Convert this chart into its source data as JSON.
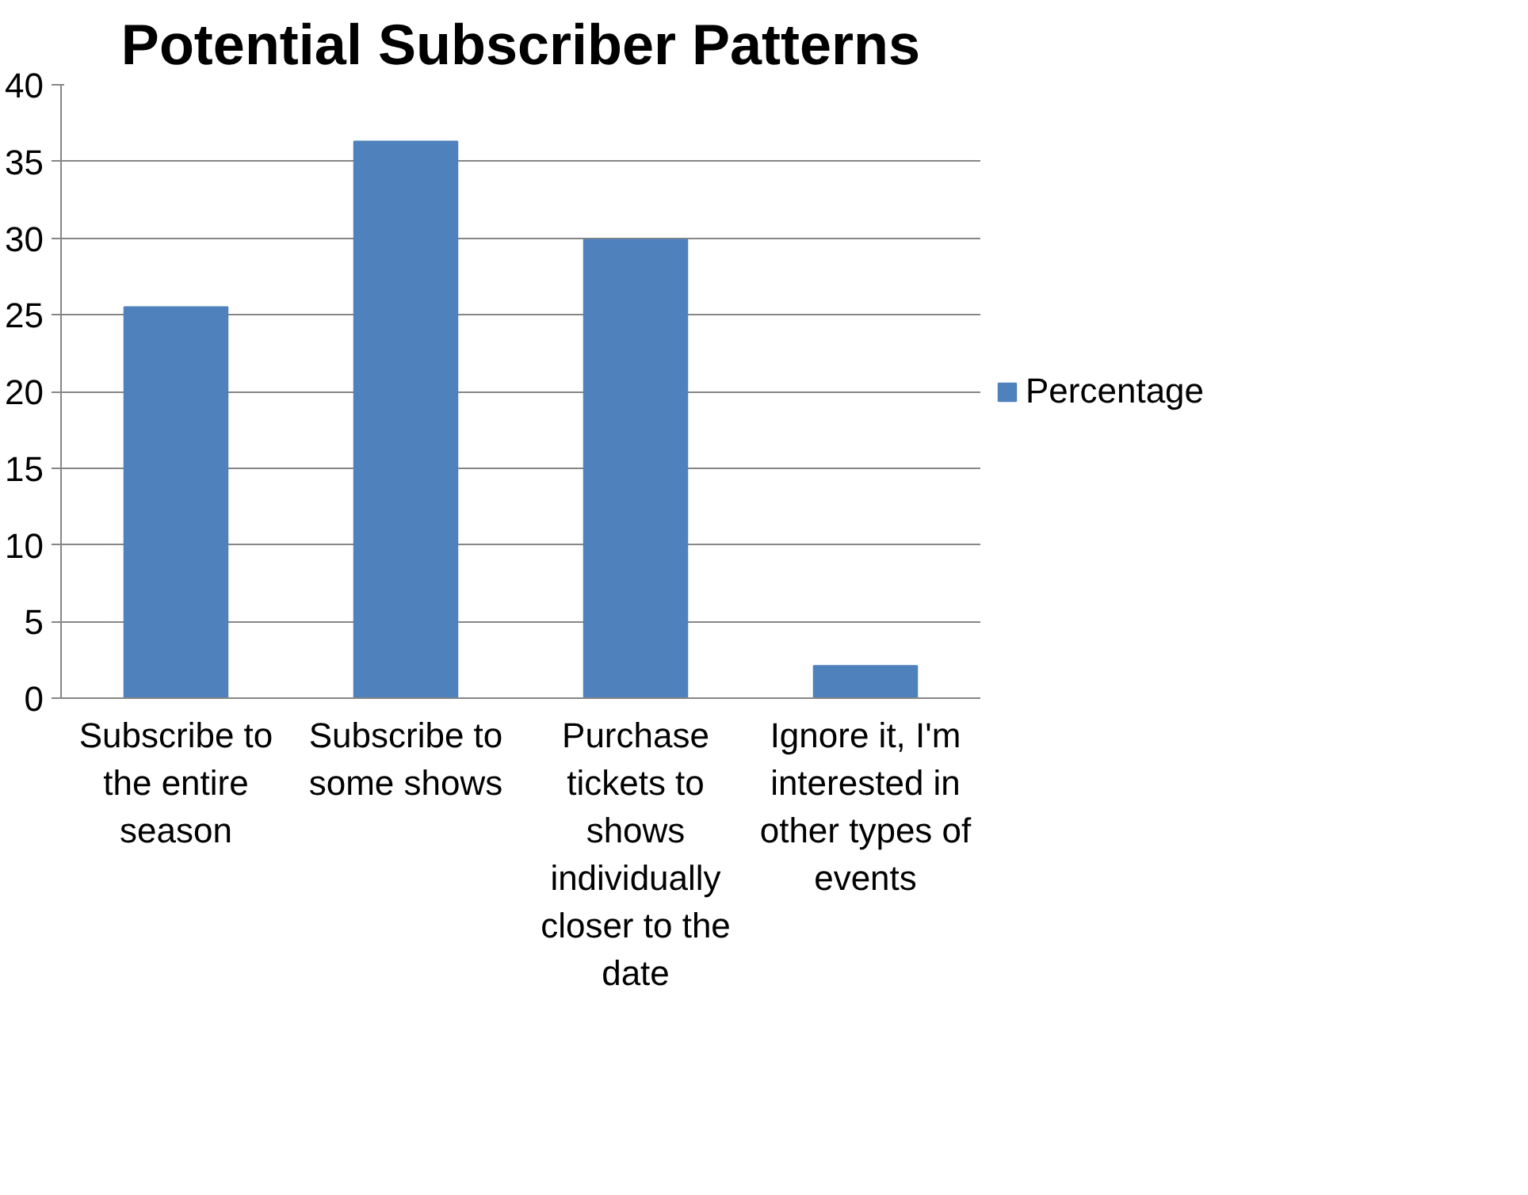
{
  "chart_data": {
    "type": "bar",
    "title": "Potential Subscriber Patterns",
    "categories": [
      "Subscribe to the entire season",
      "Subscribe to some shows",
      "Purchase tickets to shows individually closer to the date",
      "Ignore it, I'm interested in other types of events"
    ],
    "series": [
      {
        "name": "Percentage",
        "color": "#4f81bd",
        "values": [
          25.5,
          36.3,
          29.9,
          2.1
        ]
      }
    ],
    "ylim": [
      0,
      40
    ],
    "yticks": [
      0,
      5,
      10,
      15,
      20,
      25,
      30,
      35,
      40
    ],
    "grid": "y",
    "legend": "right"
  }
}
